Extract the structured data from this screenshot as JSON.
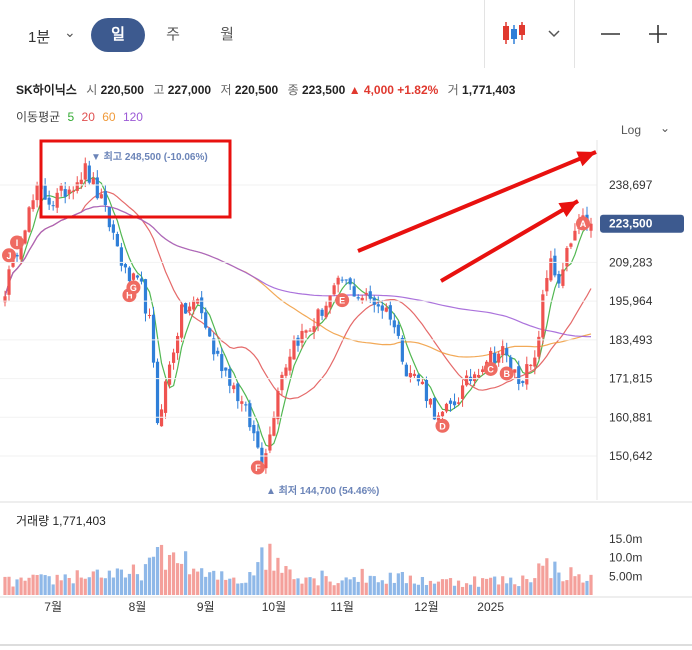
{
  "toolbar": {
    "minute_label": "1분",
    "periods": [
      "일",
      "주",
      "월"
    ],
    "active_period": "일",
    "chart_type_icon": "candlestick-icon",
    "zoom_out_icon": "minus-icon",
    "zoom_in_icon": "plus-icon"
  },
  "stock": {
    "name": "SK하이닉스",
    "open_label": "시",
    "open": "220,500",
    "high_label": "고",
    "high": "227,000",
    "low_label": "저",
    "low": "220,500",
    "close_label": "종",
    "close": "223,500",
    "change": "▲ 4,000 +1.82%",
    "volume_label": "거",
    "volume": "1,771,403"
  },
  "ma": {
    "label": "이동평균",
    "periods": [
      "5",
      "20",
      "60",
      "120"
    ],
    "colors": [
      "#33aa33",
      "#e05050",
      "#f09a3a",
      "#9c5ad6"
    ]
  },
  "scale_toggle": "Log",
  "colors": {
    "up": "#ef5350",
    "down": "#2f7fd8",
    "accent": "#3d5a8f",
    "annotation": "#e8110f",
    "marker": "#ef6b62"
  },
  "chart_data": {
    "type": "candlestick",
    "y_scale": "log",
    "y_ticks": [
      "238,697",
      "209,283",
      "195,964",
      "183,493",
      "171,815",
      "160,881",
      "150,642"
    ],
    "y_tick_values": [
      238697,
      209283,
      195964,
      183493,
      171815,
      160881,
      150642
    ],
    "current_price_label": "223,500",
    "current_price": 223500,
    "x_ticks": [
      "7월",
      "8월",
      "9월",
      "10월",
      "11월",
      "12월",
      "2025"
    ],
    "max_label": "▼ 최고 248,500 (-10.06%)",
    "max_price": 248500,
    "min_label": "▲ 최저 144,700 (54.46%)",
    "min_price": 144700,
    "event_markers": [
      "I",
      "J",
      "H",
      "G",
      "F",
      "E",
      "D",
      "C",
      "B",
      "A"
    ],
    "volume_title": "거래량 1,771,403",
    "volume_ticks": [
      "15.0m",
      "10.0m",
      "5.00m"
    ],
    "volume_tick_values": [
      15000000,
      10000000,
      5000000
    ],
    "anchors": [
      [
        0,
        200000
      ],
      [
        5,
        224000
      ],
      [
        8,
        236000
      ],
      [
        12,
        232000
      ],
      [
        16,
        238000
      ],
      [
        20,
        245000
      ],
      [
        24,
        232000
      ],
      [
        28,
        215000
      ],
      [
        30,
        205000
      ],
      [
        34,
        200000
      ],
      [
        36,
        189000
      ],
      [
        38,
        160000
      ],
      [
        40,
        170000
      ],
      [
        44,
        192000
      ],
      [
        48,
        196000
      ],
      [
        52,
        180000
      ],
      [
        56,
        172000
      ],
      [
        60,
        162000
      ],
      [
        64,
        150000
      ],
      [
        66,
        156000
      ],
      [
        68,
        170000
      ],
      [
        72,
        183000
      ],
      [
        76,
        187000
      ],
      [
        80,
        195000
      ],
      [
        84,
        203000
      ],
      [
        88,
        198000
      ],
      [
        92,
        196000
      ],
      [
        96,
        192000
      ],
      [
        100,
        175000
      ],
      [
        104,
        170000
      ],
      [
        108,
        160000
      ],
      [
        112,
        165000
      ],
      [
        116,
        172000
      ],
      [
        120,
        178000
      ],
      [
        124,
        180000
      ],
      [
        126,
        175000
      ],
      [
        128,
        172000
      ],
      [
        132,
        176000
      ],
      [
        134,
        196000
      ],
      [
        136,
        212000
      ],
      [
        138,
        200000
      ],
      [
        140,
        212000
      ],
      [
        142,
        220000
      ],
      [
        144,
        224000
      ],
      [
        146,
        223500
      ]
    ],
    "volume_anchors": [
      [
        0,
        3.5
      ],
      [
        10,
        4
      ],
      [
        20,
        5.5
      ],
      [
        25,
        6
      ],
      [
        30,
        4.5
      ],
      [
        38,
        9.5
      ],
      [
        42,
        10
      ],
      [
        50,
        5
      ],
      [
        60,
        4
      ],
      [
        64,
        12
      ],
      [
        68,
        8
      ],
      [
        75,
        5
      ],
      [
        80,
        4
      ],
      [
        88,
        5
      ],
      [
        96,
        4.5
      ],
      [
        104,
        4
      ],
      [
        110,
        3.5
      ],
      [
        120,
        4
      ],
      [
        128,
        3.5
      ],
      [
        134,
        8
      ],
      [
        138,
        6.5
      ],
      [
        142,
        5
      ],
      [
        146,
        4
      ]
    ],
    "volume_spikes": [
      [
        37,
        10.2
      ],
      [
        38,
        12.8
      ],
      [
        43,
        8.5
      ],
      [
        64,
        12.7
      ],
      [
        79,
        6.5
      ],
      [
        119,
        4.5
      ],
      [
        134,
        7.8
      ]
    ]
  }
}
